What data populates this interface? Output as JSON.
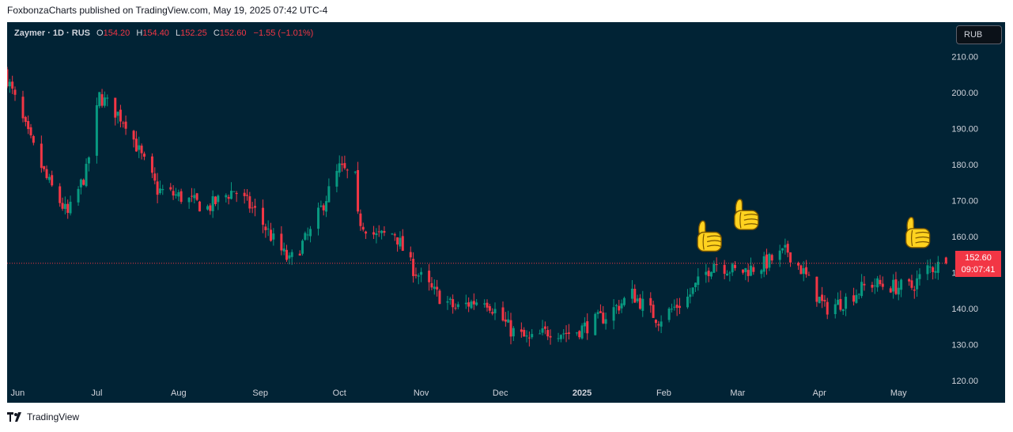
{
  "header": {
    "caption": "FoxbonzaCharts published on TradingView.com, May 19, 2025 07:42 UTC-4"
  },
  "legend": {
    "symbol": "Zaymer · 1D · RUS",
    "open_label": "O",
    "open": "154.20",
    "high_label": "H",
    "high": "154.40",
    "low_label": "L",
    "low": "152.25",
    "close_label": "C",
    "close": "152.60",
    "change": "−1.55 (−1.01%)"
  },
  "currency": "RUB",
  "last_price": {
    "value": "152.60",
    "countdown": "09:07:41"
  },
  "footer": {
    "brand": "TradingView"
  },
  "colors": {
    "background": "#012335",
    "up": "#089981",
    "down": "#f23645",
    "text": "#d1d4dc"
  },
  "annotations": [
    {
      "icon": "thumbs-up-icon",
      "date": "2025-02-18",
      "price": 155.5
    },
    {
      "icon": "thumbs-up-icon",
      "date": "2025-03-04",
      "price": 161.5
    },
    {
      "icon": "thumbs-up-icon",
      "date": "2025-05-08",
      "price": 156.5
    }
  ],
  "chart_data": {
    "type": "candlestick",
    "x_ticks": [
      "Jun",
      "Jul",
      "Aug",
      "Sep",
      "Oct",
      "Nov",
      "Dec",
      "2025",
      "Feb",
      "Mar",
      "Apr",
      "May"
    ],
    "y_ticks": [
      "120.00",
      "130.00",
      "140.00",
      "150.00",
      "160.00",
      "170.00",
      "180.00",
      "190.00",
      "200.00",
      "210.00"
    ],
    "ylim": [
      118,
      215
    ],
    "xlim": [
      "2024-05-28",
      "2025-05-30"
    ],
    "close_path": [
      [
        "2024-05-28",
        204
      ],
      [
        "2024-06-05",
        188
      ],
      [
        "2024-06-12",
        176
      ],
      [
        "2024-06-20",
        166
      ],
      [
        "2024-06-27",
        178
      ],
      [
        "2024-07-02",
        199
      ],
      [
        "2024-07-12",
        192
      ],
      [
        "2024-07-18",
        182
      ],
      [
        "2024-07-24",
        173
      ],
      [
        "2024-08-02",
        171
      ],
      [
        "2024-08-12",
        168
      ],
      [
        "2024-08-22",
        173
      ],
      [
        "2024-08-30",
        167
      ],
      [
        "2024-09-06",
        159
      ],
      [
        "2024-09-12",
        153
      ],
      [
        "2024-09-20",
        161
      ],
      [
        "2024-09-26",
        171
      ],
      [
        "2024-10-01",
        179
      ],
      [
        "2024-10-07",
        176
      ],
      [
        "2024-10-08",
        165
      ],
      [
        "2024-10-15",
        160
      ],
      [
        "2024-10-22",
        161
      ],
      [
        "2024-10-28",
        152
      ],
      [
        "2024-11-05",
        145
      ],
      [
        "2024-11-14",
        140
      ],
      [
        "2024-11-25",
        143
      ],
      [
        "2024-12-05",
        134
      ],
      [
        "2024-12-12",
        131
      ],
      [
        "2024-12-20",
        134
      ],
      [
        "2024-12-28",
        133
      ],
      [
        "2025-01-10",
        138
      ],
      [
        "2025-01-20",
        144
      ],
      [
        "2025-01-30",
        137
      ],
      [
        "2025-02-10",
        143
      ],
      [
        "2025-02-20",
        153
      ],
      [
        "2025-03-01",
        150
      ],
      [
        "2025-03-10",
        152
      ],
      [
        "2025-03-20",
        156
      ],
      [
        "2025-03-26",
        150
      ],
      [
        "2025-04-03",
        140
      ],
      [
        "2025-04-10",
        142
      ],
      [
        "2025-04-20",
        147
      ],
      [
        "2025-04-30",
        146
      ],
      [
        "2025-05-06",
        146
      ],
      [
        "2025-05-12",
        151
      ],
      [
        "2025-05-19",
        152.6
      ]
    ]
  }
}
